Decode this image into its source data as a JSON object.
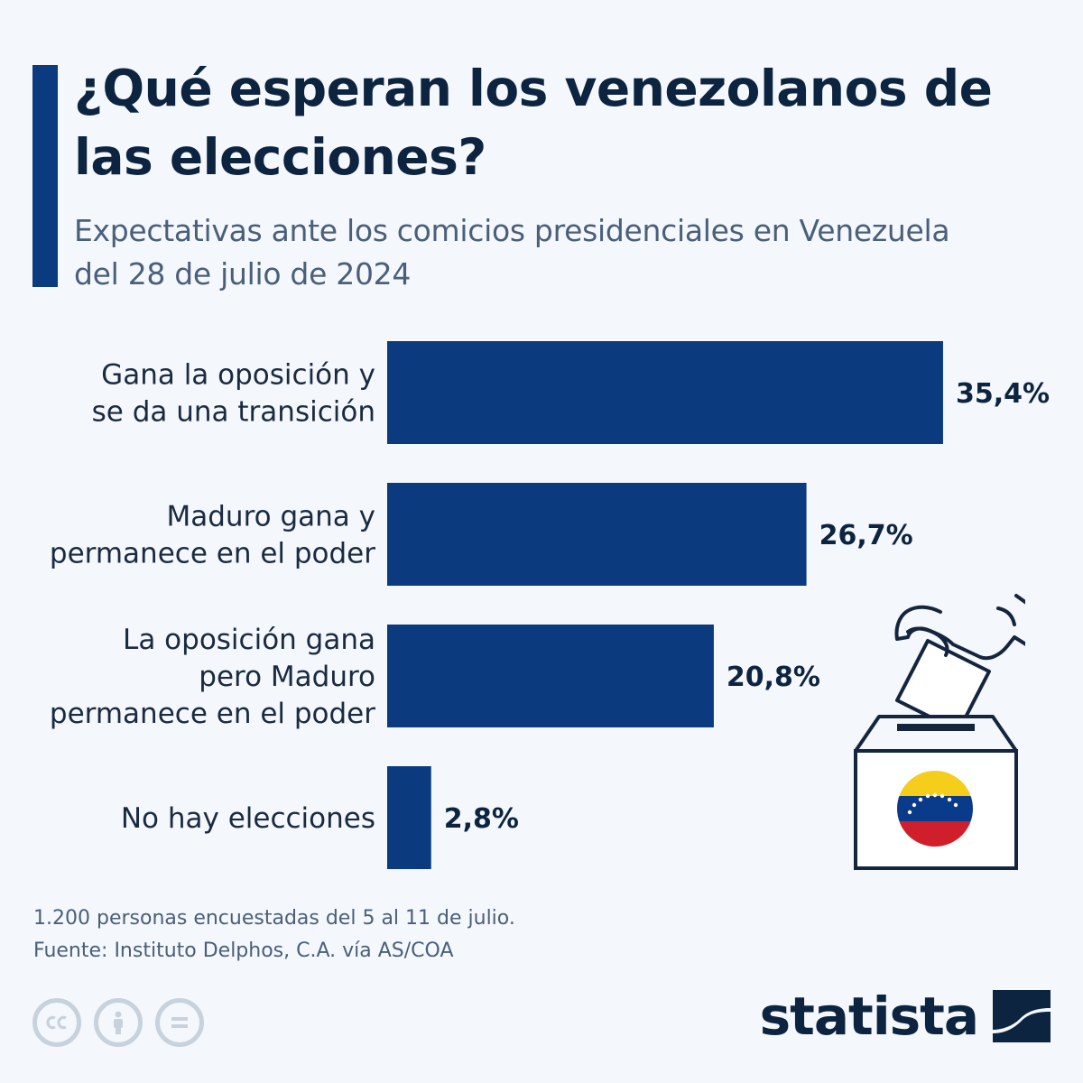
{
  "title": "¿Qué esperan los venezolanos de las elecciones?",
  "subtitle": "Expectativas ante los comicios presidenciales en Venezuela del 28 de julio de 2024",
  "footer": {
    "note": "1.200 personas encuestadas del 5 al 11 de julio.",
    "source": "Fuente: Instituto Delphos, C.A. vía AS/COA"
  },
  "brand": {
    "name": "statista"
  },
  "colors": {
    "bar": "#0b3a7e",
    "title": "#0d2440",
    "subtitle": "#4a5f7a",
    "background": "#f4f7fb",
    "flag_yellow": "#f5cd1b",
    "flag_blue": "#0a3a8a",
    "flag_red": "#cf1f2a"
  },
  "icons": [
    "cc-icon",
    "attribution-icon",
    "no-derivatives-icon",
    "statista-logo-icon",
    "ballot-box-icon",
    "venezuela-flag-icon"
  ],
  "chart_data": {
    "type": "bar",
    "orientation": "horizontal",
    "categories": [
      [
        "Gana la oposición y",
        "se da una transición"
      ],
      [
        "Maduro gana y",
        "permanece en el poder"
      ],
      [
        "La oposición gana",
        "pero Maduro",
        "permanece en el poder"
      ],
      [
        "No hay elecciones"
      ]
    ],
    "values": [
      35.4,
      26.7,
      20.8,
      2.8
    ],
    "value_labels": [
      "35,4%",
      "26,7%",
      "20,8%",
      "2,8%"
    ],
    "xlim": [
      0,
      40
    ],
    "grid": false,
    "legend": "none"
  }
}
